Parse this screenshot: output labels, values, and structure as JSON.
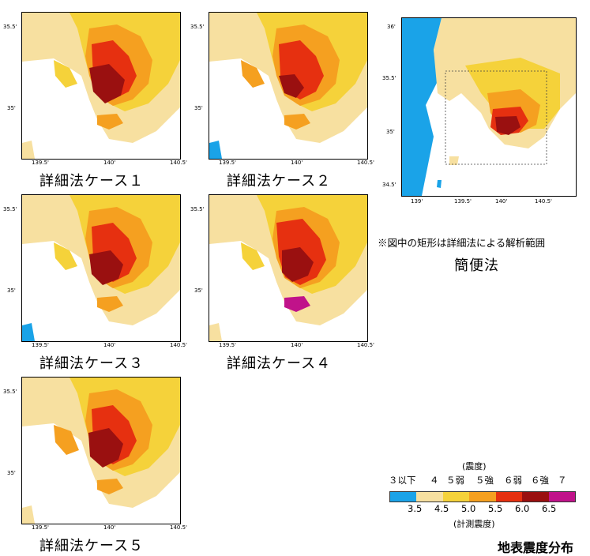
{
  "panels": [
    {
      "caption": "詳細法ケース１",
      "y_ticks": [
        "35.5'",
        "35'"
      ],
      "x_ticks": [
        "139.5'",
        "140'",
        "140.5'"
      ]
    },
    {
      "caption": "詳細法ケース２",
      "y_ticks": [
        "35.5'",
        "35'"
      ],
      "x_ticks": [
        "139.5'",
        "140'",
        "140.5'"
      ]
    },
    {
      "caption": "詳細法ケース３",
      "y_ticks": [
        "35.5'",
        "35'"
      ],
      "x_ticks": [
        "139.5'",
        "140'",
        "140.5'"
      ]
    },
    {
      "caption": "詳細法ケース４",
      "y_ticks": [
        "35.5'",
        "35'"
      ],
      "x_ticks": [
        "139.5'",
        "140'",
        "140.5'"
      ]
    },
    {
      "caption": "詳細法ケース５",
      "y_ticks": [
        "35.5'",
        "35'"
      ],
      "x_ticks": [
        "139.5'",
        "140'",
        "140.5'"
      ]
    }
  ],
  "overview": {
    "caption": "簡便法",
    "note": "※図中の矩形は詳細法による解析範囲",
    "y_ticks": [
      "36'",
      "35.5'",
      "35'",
      "34.5'"
    ],
    "x_ticks": [
      "139'",
      "139.5'",
      "140'",
      "140.5'"
    ]
  },
  "legend": {
    "title_top": "(震度)",
    "title_bottom": "(計測震度)",
    "classes": [
      "３以下",
      "４",
      "５弱",
      "５強",
      "６弱",
      "６強",
      "７"
    ],
    "thresholds": [
      "3.5",
      "4.5",
      "5.0",
      "5.5",
      "6.0",
      "6.5"
    ],
    "colors": [
      "#1aa3e8",
      "#f7e0a0",
      "#f5d23a",
      "#f5a020",
      "#f04010",
      "#9a1010",
      "#c0138a"
    ]
  },
  "main_title": "地表震度分布",
  "colors": {
    "sea": "#ffffff",
    "land_low": "#f7e0a0",
    "int_4": "#f5d23a",
    "int_5l": "#f5a020",
    "int_5u": "#f07020",
    "int_6l": "#e63010",
    "int_6u": "#9a1010"
  }
}
